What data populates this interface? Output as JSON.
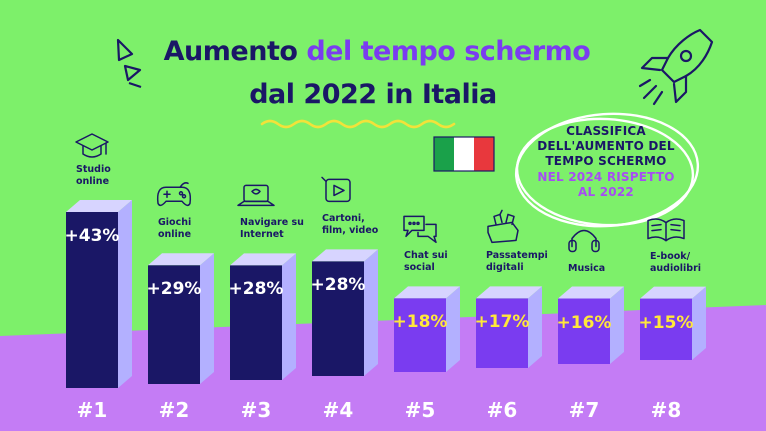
{
  "title": {
    "line1_part1": "Aumento ",
    "line1_part2": "del tempo schermo",
    "line2": "dal 2022 in Italia"
  },
  "note": {
    "line1": "CLASSIFICA",
    "line2": "DELL'AUMENTO DEL",
    "line3": "TEMPO SCHERMO",
    "line4": "NEL 2024 RISPETTO",
    "line5": "AL 2022"
  },
  "colors": {
    "background": "#7df06a",
    "floor": "#c47cf5",
    "dark_bar": "#1a1766",
    "light_bar": "#7a3cf0",
    "side_light": "#b3b0ff",
    "top_light": "#d7d4ff",
    "value_white": "#ffffff",
    "value_yellow": "#ffe83a",
    "title_dark": "#1a1766",
    "title_accent": "#7a3cf0",
    "flag_green": "#1aa14a",
    "flag_white": "#ffffff",
    "flag_red": "#e8383d"
  },
  "chart_data": {
    "type": "bar",
    "categories": [
      [
        "Studio",
        "online"
      ],
      [
        "Giochi",
        "online"
      ],
      [
        "Navigare su",
        "Internet"
      ],
      [
        "Cartoni,",
        "film, video"
      ],
      [
        "Chat sui",
        "social"
      ],
      [
        "Passatempi",
        "digitali"
      ],
      [
        "Musica"
      ],
      [
        "E-book/",
        "audiolibri"
      ]
    ],
    "values": [
      43,
      29,
      28,
      28,
      18,
      17,
      16,
      15
    ],
    "value_labels": [
      "+43%",
      "+29%",
      "+28%",
      "+28%",
      "+18%",
      "+17%",
      "+16%",
      "+15%"
    ],
    "ranks": [
      "#1",
      "#2",
      "#3",
      "#4",
      "#5",
      "#6",
      "#7",
      "#8"
    ],
    "icons": [
      "graduation-cap-icon",
      "gamepad-icon",
      "laptop-icon",
      "play-icon",
      "chat-bubbles-icon",
      "puzzle-box-icon",
      "headphones-icon",
      "open-book-icon"
    ],
    "unit": "%",
    "ylim": [
      0,
      43
    ]
  }
}
